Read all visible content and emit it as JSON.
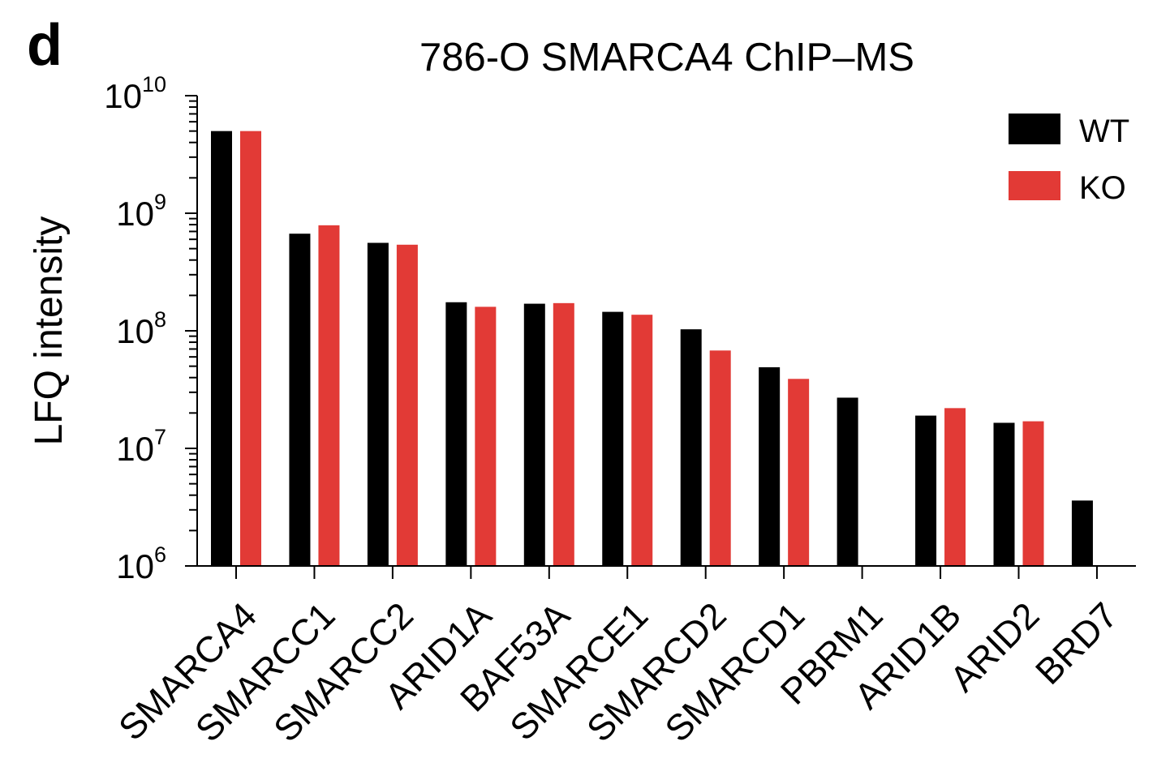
{
  "panel_label": "d",
  "chart_data": {
    "type": "bar",
    "title": "786-O SMARCA4 ChIP–MS",
    "xlabel": "",
    "ylabel": "LFQ intensity",
    "yscale": "log",
    "ylim": [
      1000000,
      10000000000
    ],
    "y_ticks": [
      {
        "value": 1000000,
        "base": "10",
        "exponent": "6"
      },
      {
        "value": 10000000,
        "base": "10",
        "exponent": "7"
      },
      {
        "value": 100000000,
        "base": "10",
        "exponent": "8"
      },
      {
        "value": 1000000000,
        "base": "10",
        "exponent": "9"
      },
      {
        "value": 10000000000,
        "base": "10",
        "exponent": "10"
      }
    ],
    "categories": [
      "SMARCA4",
      "SMARCC1",
      "SMARCC2",
      "ARID1A",
      "BAF53A",
      "SMARCE1",
      "SMARCD2",
      "SMARCD1",
      "PBRM1",
      "ARID1B",
      "ARID2",
      "BRD7"
    ],
    "series": [
      {
        "name": "WT",
        "color": "#000000",
        "values": [
          5000000000,
          670000000,
          560000000,
          175000000,
          170000000,
          145000000,
          103000000,
          49000000,
          27000000,
          19000000,
          16500000,
          3600000
        ]
      },
      {
        "name": "KO",
        "color": "#e23a36",
        "values": [
          5000000000,
          790000000,
          540000000,
          160000000,
          172000000,
          137000000,
          68000000,
          39000000,
          null,
          22000000,
          17000000,
          null
        ]
      }
    ],
    "legend": "top-right",
    "grid": false
  }
}
